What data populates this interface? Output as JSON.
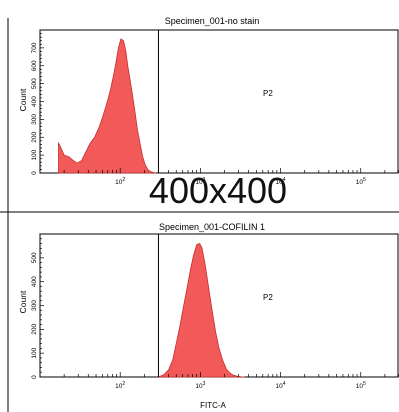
{
  "watermark": "400x400",
  "chart_data": [
    {
      "type": "area",
      "title": "Specimen_001-no stain",
      "xlabel": "",
      "ylabel": "Count",
      "x_scale": "log",
      "xlim": [
        10,
        300000
      ],
      "ylim": [
        0,
        800
      ],
      "y_ticks": [
        0,
        100,
        200,
        300,
        400,
        500,
        600,
        700
      ],
      "x_tick_labels": [
        "10^2",
        "10^3",
        "10^4",
        "10^5"
      ],
      "x_major_ticks": [
        100,
        1000,
        10000,
        100000
      ],
      "gate": {
        "label": "P2",
        "start": 300
      },
      "fill_color": "#f25a5a",
      "series": [
        {
          "x": [
            17,
            20,
            23,
            26,
            29,
            33,
            37,
            42,
            48,
            55,
            60,
            65,
            70,
            76,
            82,
            88,
            95,
            102,
            110,
            118,
            125,
            133,
            142,
            152,
            163,
            175,
            190,
            205,
            222,
            240,
            260,
            280
          ],
          "y": [
            170,
            100,
            90,
            70,
            55,
            70,
            115,
            165,
            200,
            260,
            310,
            360,
            410,
            470,
            540,
            610,
            700,
            750,
            740,
            680,
            590,
            520,
            440,
            350,
            250,
            175,
            95,
            45,
            18,
            8,
            3,
            0
          ]
        }
      ]
    },
    {
      "type": "area",
      "title": "Specimen_001-COFILIN 1",
      "xlabel": "FITC-A",
      "ylabel": "Count",
      "x_scale": "log",
      "xlim": [
        10,
        300000
      ],
      "ylim": [
        0,
        600
      ],
      "y_ticks": [
        0,
        100,
        200,
        300,
        400,
        500
      ],
      "x_tick_labels": [
        "10^2",
        "10^3",
        "10^4",
        "10^5"
      ],
      "x_major_ticks": [
        100,
        1000,
        10000,
        100000
      ],
      "gate": {
        "label": "P2",
        "start": 300
      },
      "fill_color": "#f25a5a",
      "series": [
        {
          "x": [
            300,
            350,
            400,
            450,
            500,
            560,
            620,
            680,
            750,
            820,
            900,
            980,
            1050,
            1150,
            1250,
            1400,
            1550,
            1700,
            1900,
            2100,
            2350,
            2600,
            2900,
            3200,
            3600
          ],
          "y": [
            0,
            10,
            30,
            70,
            140,
            220,
            300,
            370,
            450,
            510,
            555,
            560,
            540,
            470,
            390,
            280,
            190,
            125,
            70,
            35,
            16,
            7,
            3,
            1,
            0
          ]
        }
      ]
    }
  ]
}
